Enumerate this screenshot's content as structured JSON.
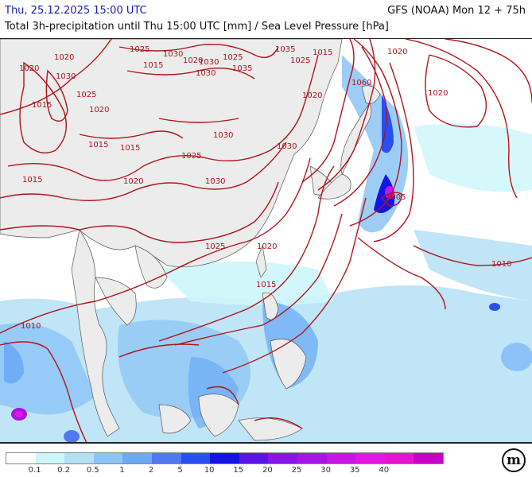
{
  "header": {
    "valid_time": "Thu, 25.12.2025 15:00 UTC",
    "model_run": "GFS (NOAA) Mon 12 + 75h",
    "description": "Total 3h-precipitation until Thu 15:00 UTC [mm] / Sea Level Pressure [hPa]"
  },
  "colors": {
    "isobar": "#b0131b",
    "land": "#ececec",
    "sea": "#ffffff",
    "coast": "#555555"
  },
  "isobar_labels": [
    "1020",
    "1030",
    "1025",
    "1030",
    "1025",
    "1035",
    "1015",
    "1025",
    "1020",
    "1030",
    "1025",
    "1015",
    "1020",
    "1020",
    "1015",
    "1035",
    "1030",
    "1020",
    "1060",
    "1020",
    "1030",
    "1015",
    "1030",
    "1025",
    "1015",
    "1020",
    "1015",
    "1030",
    "1020",
    "1005",
    "1025",
    "1020",
    "1015",
    "1010",
    "1010"
  ],
  "legend": {
    "colors": [
      "#ffffff",
      "#ccf6fa",
      "#b4e0f6",
      "#8cc4f6",
      "#6aaaf6",
      "#5078f2",
      "#2650f0",
      "#1414e6",
      "#5a14e6",
      "#8c14e6",
      "#a814e6",
      "#c814e6",
      "#e614e6",
      "#e614d2",
      "#c800c8"
    ],
    "labels": [
      "0.1",
      "0.2",
      "0.5",
      "1",
      "2",
      "5",
      "10",
      "15",
      "20",
      "25",
      "30",
      "35",
      "40"
    ]
  },
  "logo": {
    "text": "m",
    "icon": "meteologix-logo-icon"
  }
}
